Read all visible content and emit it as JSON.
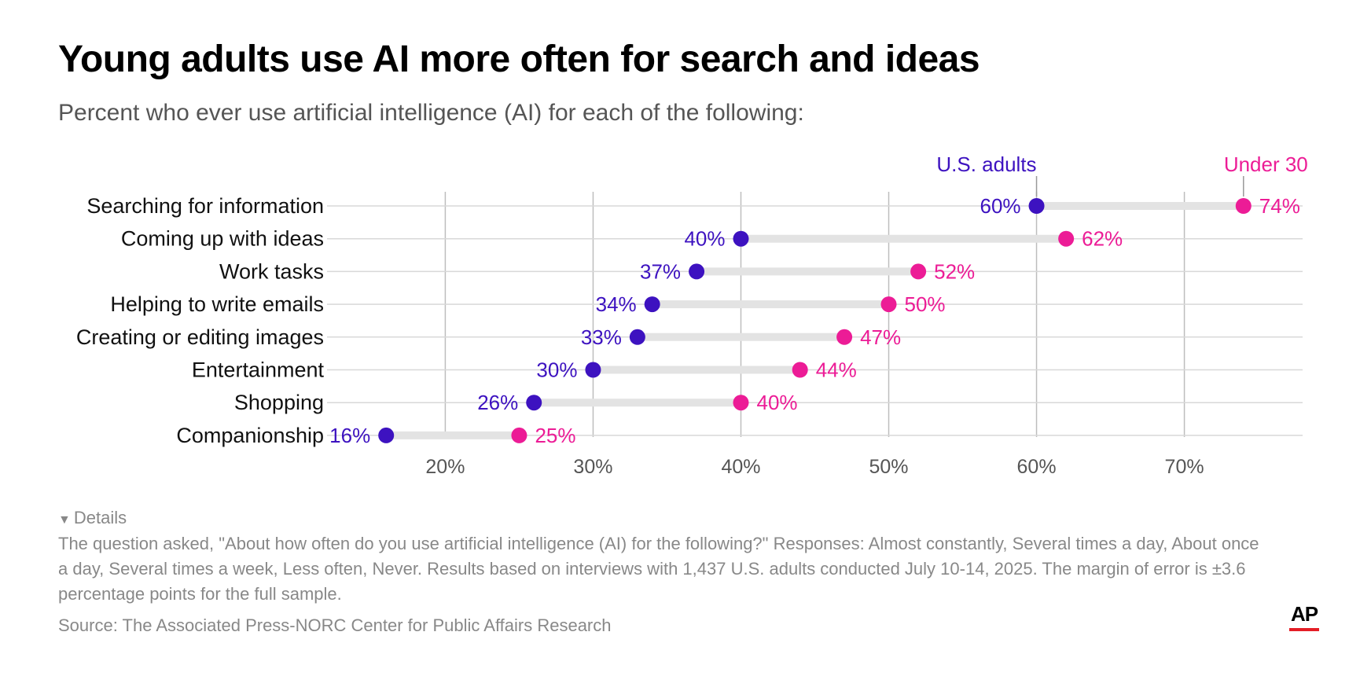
{
  "title": "Young adults use AI more often for search and ideas",
  "subtitle": "Percent who ever use artificial intelligence (AI) for each of the following:",
  "details": {
    "toggle_label": "Details",
    "text": "The question asked, \"About how often do you use artificial intelligence (AI) for the following?\" Responses: Almost constantly, Several times a day, About once a day, Several times a week, Less often, Never. Results based on interviews with 1,437 U.S. adults conducted July 10-14, 2025. The margin of error is ±3.6 percentage points for the full sample."
  },
  "source": "Source: The Associated Press-NORC Center for Public Affairs Research",
  "logo": "AP",
  "colors": {
    "us_adults": "#3d12c0",
    "under_30": "#ec1c96",
    "connector": "#e3e3e3",
    "grid": "#bdbdbd"
  },
  "chart_data": {
    "type": "dot-range",
    "xlim": [
      12,
      78
    ],
    "xticks": [
      20,
      30,
      40,
      50,
      60,
      70
    ],
    "xtick_labels": [
      "20%",
      "30%",
      "40%",
      "50%",
      "60%",
      "70%"
    ],
    "categories": [
      "Searching for information",
      "Coming up with ideas",
      "Work tasks",
      "Helping to write emails",
      "Creating or editing images",
      "Entertainment",
      "Shopping",
      "Companionship"
    ],
    "series": [
      {
        "name": "U.S. adults",
        "color": "#3d12c0",
        "values": [
          60,
          40,
          37,
          34,
          33,
          30,
          26,
          16
        ],
        "labels": [
          "60%",
          "40%",
          "37%",
          "34%",
          "33%",
          "30%",
          "26%",
          "16%"
        ]
      },
      {
        "name": "Under 30",
        "color": "#ec1c96",
        "values": [
          74,
          62,
          52,
          50,
          47,
          44,
          40,
          25
        ],
        "labels": [
          "74%",
          "62%",
          "52%",
          "50%",
          "47%",
          "44%",
          "40%",
          "25%"
        ]
      }
    ],
    "legend_position": "annotations on top row"
  }
}
